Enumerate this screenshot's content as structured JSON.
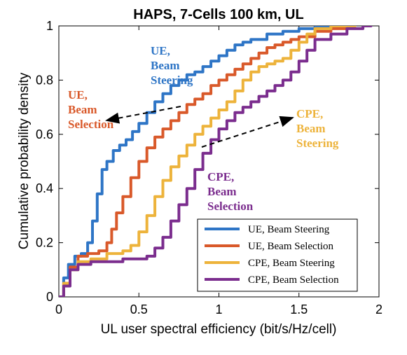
{
  "chart_data": {
    "type": "line",
    "title": "HAPS, 7-Cells 100 km, UL",
    "xlabel": "UL user spectral efficiency (bit/s/Hz/cell)",
    "ylabel": "Cumulative probability density",
    "xlim": [
      0,
      2
    ],
    "ylim": [
      0,
      1
    ],
    "xticks": [
      0,
      0.5,
      1,
      1.5,
      2
    ],
    "yticks": [
      0,
      0.2,
      0.4,
      0.6,
      0.8,
      1
    ],
    "xtick_labels": [
      "0",
      "0.5",
      "1",
      "1.5",
      "2"
    ],
    "ytick_labels": [
      "0",
      "0.2",
      "0.4",
      "0.6",
      "0.8",
      "1"
    ],
    "grid": false,
    "legend_position": "bottom-right",
    "series": [
      {
        "name": "UE, Beam Steering",
        "color": "#2E75C6",
        "x": [
          0,
          0.03,
          0.06,
          0.1,
          0.14,
          0.18,
          0.21,
          0.24,
          0.27,
          0.3,
          0.34,
          0.38,
          0.42,
          0.46,
          0.5,
          0.55,
          0.6,
          0.65,
          0.7,
          0.75,
          0.8,
          0.85,
          0.9,
          0.95,
          1.0,
          1.05,
          1.1,
          1.15,
          1.2,
          1.3,
          1.4,
          1.5,
          1.6,
          1.7,
          1.75
        ],
        "y": [
          0,
          0.07,
          0.12,
          0.15,
          0.16,
          0.2,
          0.28,
          0.38,
          0.47,
          0.5,
          0.54,
          0.56,
          0.58,
          0.61,
          0.64,
          0.68,
          0.72,
          0.75,
          0.78,
          0.8,
          0.82,
          0.83,
          0.85,
          0.87,
          0.89,
          0.91,
          0.93,
          0.94,
          0.95,
          0.97,
          0.98,
          0.99,
          0.995,
          1.0,
          1.0
        ]
      },
      {
        "name": "UE, Beam Selection",
        "color": "#D9592A",
        "x": [
          0,
          0.03,
          0.07,
          0.12,
          0.18,
          0.25,
          0.3,
          0.33,
          0.36,
          0.4,
          0.45,
          0.5,
          0.55,
          0.6,
          0.65,
          0.7,
          0.75,
          0.8,
          0.85,
          0.9,
          0.95,
          1.0,
          1.05,
          1.1,
          1.15,
          1.2,
          1.25,
          1.3,
          1.35,
          1.4,
          1.45,
          1.5,
          1.6,
          1.7,
          1.8,
          1.85
        ],
        "y": [
          0,
          0.05,
          0.11,
          0.15,
          0.16,
          0.17,
          0.2,
          0.25,
          0.31,
          0.37,
          0.44,
          0.5,
          0.55,
          0.59,
          0.62,
          0.65,
          0.68,
          0.71,
          0.73,
          0.75,
          0.78,
          0.8,
          0.82,
          0.84,
          0.86,
          0.88,
          0.9,
          0.92,
          0.93,
          0.94,
          0.95,
          0.96,
          0.98,
          0.99,
          1.0,
          1.0
        ]
      },
      {
        "name": "CPE, Beam Steering",
        "color": "#EDB33B",
        "x": [
          0,
          0.03,
          0.07,
          0.12,
          0.2,
          0.3,
          0.4,
          0.45,
          0.5,
          0.55,
          0.6,
          0.65,
          0.7,
          0.75,
          0.8,
          0.85,
          0.9,
          0.95,
          1.0,
          1.05,
          1.1,
          1.15,
          1.2,
          1.25,
          1.3,
          1.35,
          1.4,
          1.45,
          1.5,
          1.55,
          1.6,
          1.7,
          1.8,
          1.85
        ],
        "y": [
          0,
          0.05,
          0.1,
          0.13,
          0.14,
          0.16,
          0.17,
          0.19,
          0.24,
          0.3,
          0.37,
          0.43,
          0.48,
          0.52,
          0.56,
          0.6,
          0.63,
          0.66,
          0.69,
          0.72,
          0.76,
          0.8,
          0.83,
          0.85,
          0.86,
          0.87,
          0.88,
          0.91,
          0.94,
          0.97,
          0.99,
          1.0,
          1.0,
          1.0
        ]
      },
      {
        "name": "CPE, Beam Selection",
        "color": "#7B2D8E",
        "x": [
          0,
          0.03,
          0.07,
          0.12,
          0.2,
          0.3,
          0.4,
          0.5,
          0.55,
          0.6,
          0.65,
          0.7,
          0.75,
          0.8,
          0.85,
          0.9,
          0.95,
          1.0,
          1.05,
          1.1,
          1.15,
          1.2,
          1.25,
          1.3,
          1.35,
          1.4,
          1.45,
          1.5,
          1.55,
          1.6,
          1.7,
          1.8,
          1.9,
          1.95
        ],
        "y": [
          0,
          0.04,
          0.1,
          0.12,
          0.13,
          0.13,
          0.14,
          0.14,
          0.15,
          0.18,
          0.22,
          0.28,
          0.34,
          0.4,
          0.47,
          0.53,
          0.58,
          0.62,
          0.65,
          0.68,
          0.7,
          0.72,
          0.74,
          0.76,
          0.78,
          0.8,
          0.83,
          0.87,
          0.91,
          0.95,
          0.97,
          0.99,
          1.0,
          1.0
        ]
      }
    ],
    "annotations": [
      {
        "text": "UE,\nBeam\nSteering",
        "color": "#2E75C6"
      },
      {
        "text": "UE,\nBeam\nSelection",
        "color": "#D9592A"
      },
      {
        "text": "CPE,\nBeam\nSteering",
        "color": "#EDB33B"
      },
      {
        "text": "CPE,\nBeam\nSelection",
        "color": "#7B2D8E"
      }
    ]
  }
}
